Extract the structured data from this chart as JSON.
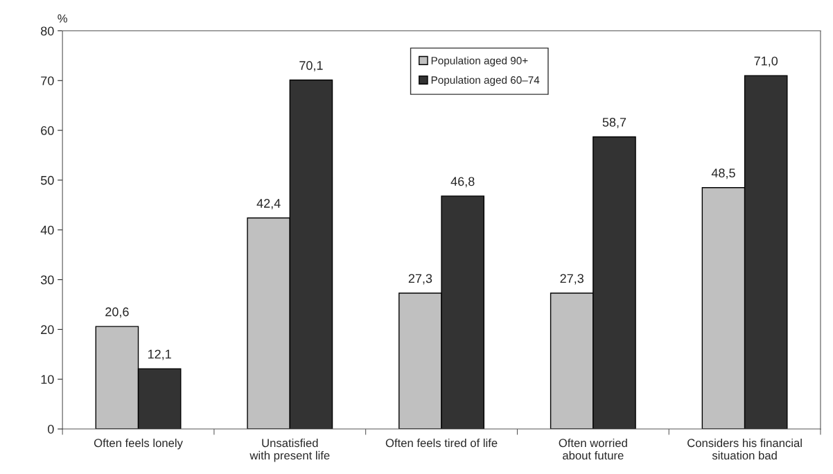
{
  "chart_data": {
    "type": "bar",
    "ylabel": "%",
    "categories": [
      "Often feels lonely",
      "Unsatisfied\nwith present life",
      "Often feels tired of life",
      "Often worried\nabout future",
      "Considers his financial\nsituation bad"
    ],
    "series": [
      {
        "name": "Population aged 90+",
        "color": "#c0c0c0",
        "values": [
          20.6,
          42.4,
          27.3,
          27.3,
          48.5
        ],
        "value_labels": [
          "20,6",
          "42,4",
          "27,3",
          "27,3",
          "48,5"
        ]
      },
      {
        "name": "Population aged 60–74",
        "color": "#333333",
        "values": [
          12.1,
          70.1,
          46.8,
          58.7,
          71.0
        ],
        "value_labels": [
          "12,1",
          "70,1",
          "46,8",
          "58,7",
          "71,0"
        ]
      }
    ],
    "ylim": [
      0,
      80
    ],
    "yticks": [
      0,
      10,
      20,
      30,
      40,
      50,
      60,
      70,
      80
    ],
    "grid": false,
    "legend": "top"
  }
}
